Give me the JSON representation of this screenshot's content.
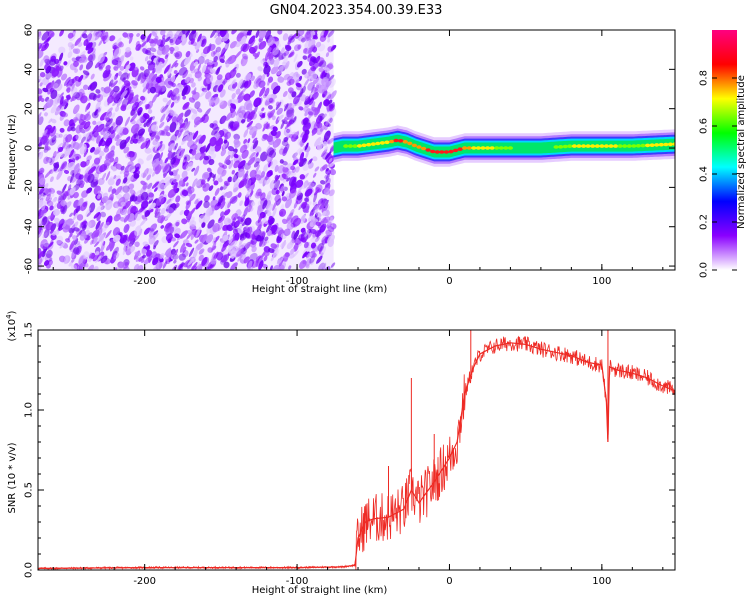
{
  "title": "GN04.2023.354.00.39.E33",
  "chart_data": [
    {
      "type": "heatmap",
      "xlabel": "Height of straight line (km)",
      "ylabel": "Frequency (Hz)",
      "xlim": [
        -270,
        148
      ],
      "ylim": [
        -62,
        60
      ],
      "xticks": [
        -200,
        -100,
        0,
        100
      ],
      "yticks": [
        60,
        40,
        20,
        0,
        -20,
        -40,
        -60
      ],
      "colorbar": {
        "label": "Normalized spectral amplitude",
        "range": [
          0.0,
          1.0
        ],
        "ticks": [
          "0.0",
          "0.2",
          "0.4",
          "0.6",
          "0.8"
        ],
        "colors": [
          "#ffffff",
          "#8a00ff",
          "#0000ff",
          "#00ffff",
          "#00ff00",
          "#ffff00",
          "#ff0000",
          "#ff0080"
        ]
      },
      "noise_region_x": [
        -270,
        -76
      ],
      "ridge": {
        "x": [
          -76,
          -70,
          -60,
          -50,
          -40,
          -34,
          -28,
          -22,
          -18,
          -10,
          0,
          10,
          20,
          40,
          60,
          80,
          100,
          120,
          148
        ],
        "freq": [
          0,
          1,
          1,
          2,
          3,
          4,
          3,
          1,
          0,
          -2,
          -2,
          0,
          0,
          0,
          0,
          1,
          1,
          1,
          2
        ],
        "amplitude": [
          0.4,
          0.5,
          0.55,
          0.6,
          0.7,
          0.9,
          0.8,
          0.7,
          0.8,
          0.95,
          1.0,
          0.85,
          0.6,
          0.5,
          0.45,
          0.55,
          0.6,
          0.5,
          0.7
        ]
      }
    },
    {
      "type": "line",
      "xlabel": "Height of straight line (km)",
      "ylabel": "SNR (10 * v/v)",
      "multiplier": "(x10",
      "multiplier_exp": "4",
      "multiplier_close": ")",
      "xlim": [
        -270,
        148
      ],
      "ylim": [
        0,
        1.5
      ],
      "xticks": [
        -200,
        -100,
        0,
        100
      ],
      "yticks": [
        "0.0",
        "0.5",
        "1.0",
        "1.5"
      ],
      "color": "#ee2a24",
      "series": [
        {
          "x": [
            -270,
            -200,
            -150,
            -100,
            -70,
            -62,
            -60,
            -55,
            -50,
            -40,
            -30,
            -25,
            -20,
            -10,
            0,
            5,
            10,
            15,
            20,
            30,
            40,
            50,
            60,
            70,
            80,
            90,
            100,
            103,
            104,
            105,
            110,
            120,
            130,
            140,
            148
          ],
          "values": [
            0.01,
            0.015,
            0.015,
            0.015,
            0.02,
            0.03,
            0.2,
            0.3,
            0.32,
            0.33,
            0.38,
            0.5,
            0.42,
            0.55,
            0.7,
            0.8,
            1.1,
            1.25,
            1.35,
            1.4,
            1.42,
            1.41,
            1.38,
            1.36,
            1.34,
            1.3,
            1.28,
            1.05,
            0.8,
            1.27,
            1.25,
            1.23,
            1.2,
            1.15,
            1.12
          ]
        }
      ],
      "spikes": [
        {
          "x": -58,
          "value": 0.25
        },
        {
          "x": -40,
          "value": 0.65
        },
        {
          "x": -25,
          "value": 1.2
        },
        {
          "x": -10,
          "value": 0.85
        },
        {
          "x": 14,
          "value": 1.5
        },
        {
          "x": 104,
          "value": 1.5
        }
      ]
    }
  ]
}
